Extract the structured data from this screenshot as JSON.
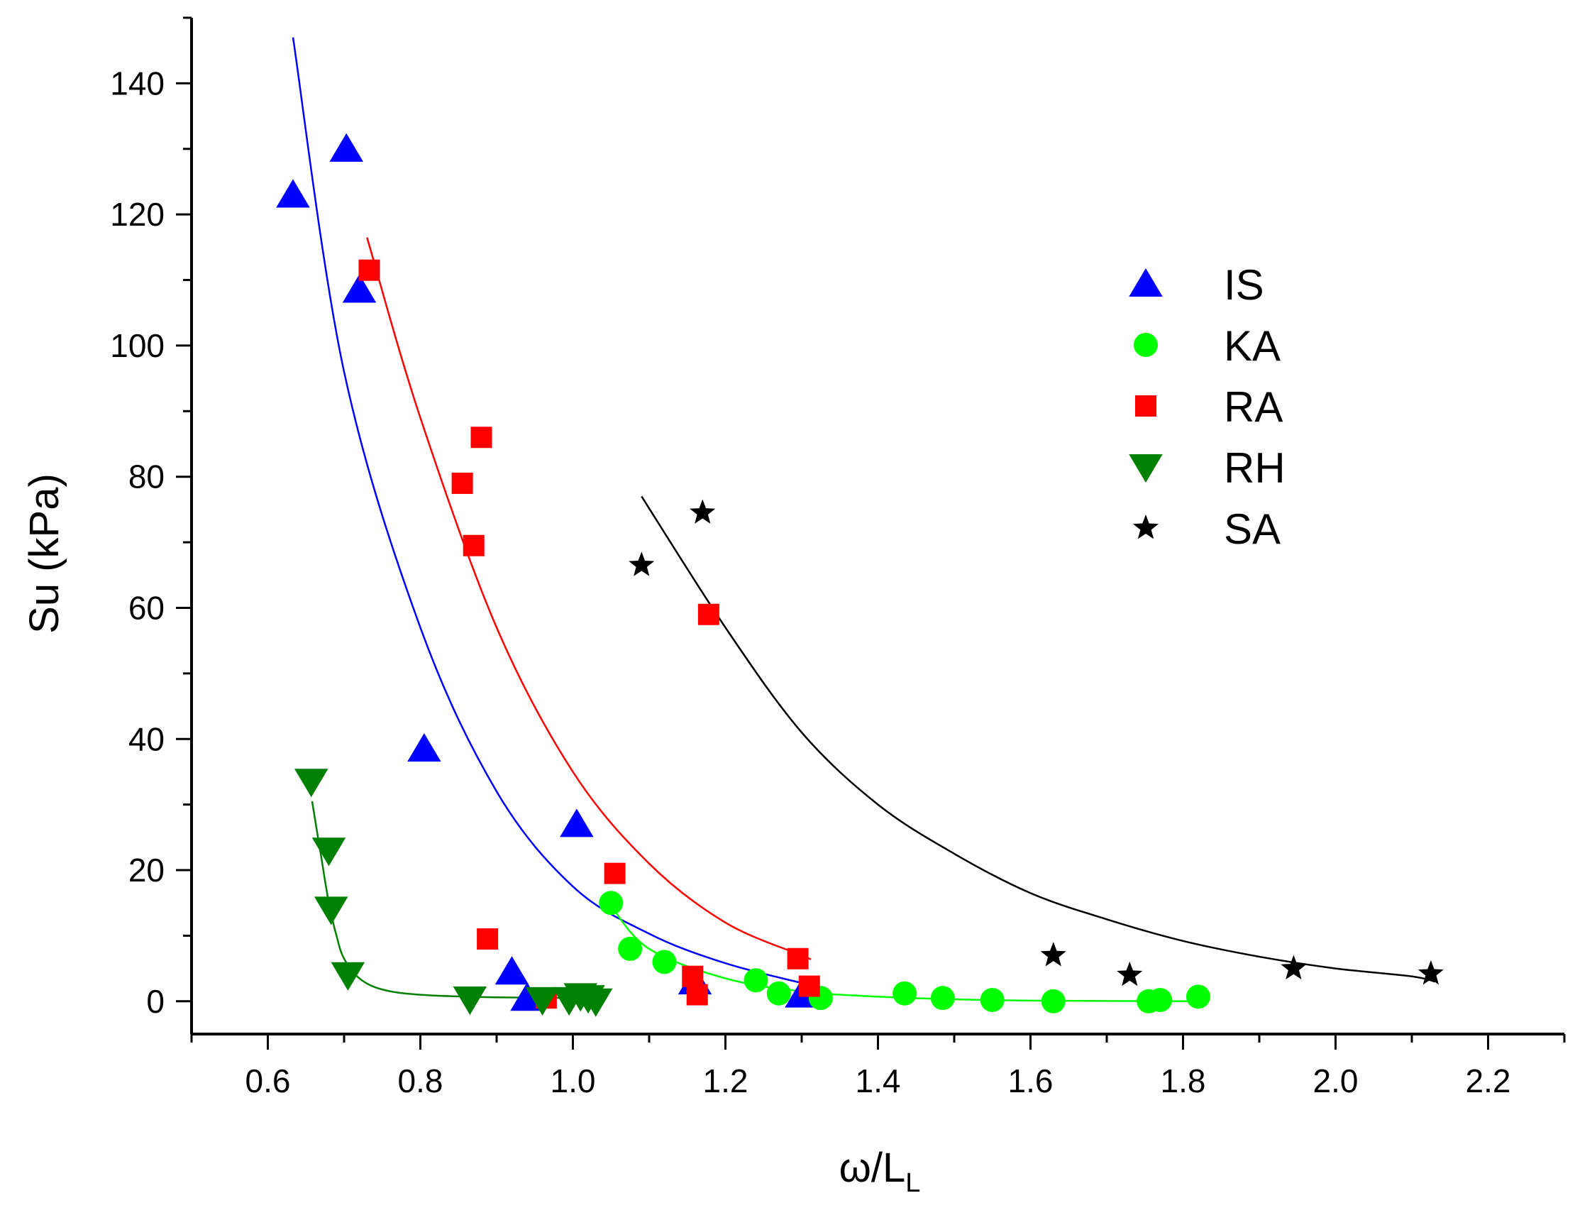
{
  "chart_data": {
    "type": "scatter",
    "title": "",
    "xlabel": "ω/L",
    "xlabel_subscript": "L",
    "ylabel": "Su (kPa)",
    "xlim": [
      0.5,
      2.3
    ],
    "ylim": [
      -5,
      150
    ],
    "x_ticks": [
      0.6,
      0.8,
      1.0,
      1.2,
      1.4,
      1.6,
      1.8,
      2.0,
      2.2
    ],
    "x_tick_labels": [
      "0.6",
      "0.8",
      "1.0",
      "1.2",
      "1.4",
      "1.6",
      "1.8",
      "2.0",
      "2.2"
    ],
    "y_ticks": [
      0,
      20,
      40,
      60,
      80,
      100,
      120,
      140
    ],
    "y_tick_labels": [
      "0",
      "20",
      "40",
      "60",
      "80",
      "100",
      "120",
      "140"
    ],
    "grid": false,
    "legend_position": "top-right",
    "series": [
      {
        "name": "IS",
        "color": "#0000ff",
        "marker": "triangle-up",
        "points": [
          [
            0.633,
            123
          ],
          [
            0.703,
            130
          ],
          [
            0.72,
            108.5
          ],
          [
            0.805,
            38.5
          ],
          [
            1.005,
            27
          ],
          [
            0.92,
            4.5
          ],
          [
            0.94,
            0.5
          ],
          [
            1.16,
            3
          ],
          [
            1.3,
            1
          ]
        ],
        "fit": [
          [
            0.633,
            147
          ],
          [
            0.7,
            96
          ],
          [
            0.8,
            57
          ],
          [
            0.9,
            32
          ],
          [
            1.0,
            17.5
          ],
          [
            1.1,
            10.3
          ],
          [
            1.2,
            5.8
          ],
          [
            1.31,
            2.5
          ]
        ]
      },
      {
        "name": "KA",
        "color": "#00ff00",
        "marker": "circle",
        "points": [
          [
            1.05,
            15
          ],
          [
            1.075,
            8
          ],
          [
            1.12,
            6
          ],
          [
            1.24,
            3.2
          ],
          [
            1.27,
            1.2
          ],
          [
            1.325,
            0.5
          ],
          [
            1.435,
            1.2
          ],
          [
            1.485,
            0.5
          ],
          [
            1.55,
            0.2
          ],
          [
            1.63,
            0
          ],
          [
            1.755,
            0
          ],
          [
            1.77,
            0.2
          ],
          [
            1.82,
            0.7
          ]
        ],
        "fit": [
          [
            1.05,
            14.5
          ],
          [
            1.1,
            8
          ],
          [
            1.2,
            3.5
          ],
          [
            1.3,
            1.5
          ],
          [
            1.4,
            0.7
          ],
          [
            1.5,
            0.3
          ],
          [
            1.6,
            0.1
          ],
          [
            1.82,
            0
          ]
        ]
      },
      {
        "name": "RA",
        "color": "#ff0000",
        "marker": "square",
        "points": [
          [
            0.733,
            111.5
          ],
          [
            0.855,
            79
          ],
          [
            0.87,
            69.5
          ],
          [
            0.88,
            86
          ],
          [
            0.888,
            9.5
          ],
          [
            0.965,
            0.5
          ],
          [
            1.055,
            19.5
          ],
          [
            1.157,
            3.8
          ],
          [
            1.163,
            1
          ],
          [
            1.178,
            59
          ],
          [
            1.295,
            6.5
          ],
          [
            1.31,
            2.3
          ]
        ],
        "fit": [
          [
            0.73,
            116.5
          ],
          [
            0.8,
            89
          ],
          [
            0.9,
            57
          ],
          [
            1.0,
            35
          ],
          [
            1.1,
            21
          ],
          [
            1.2,
            12
          ],
          [
            1.3,
            7
          ],
          [
            1.31,
            6.5
          ]
        ]
      },
      {
        "name": "RH",
        "color": "#008000",
        "marker": "triangle-down",
        "points": [
          [
            0.657,
            33.5
          ],
          [
            0.68,
            23
          ],
          [
            0.683,
            14
          ],
          [
            0.705,
            4
          ],
          [
            0.865,
            0.3
          ],
          [
            0.96,
            0.2
          ],
          [
            0.995,
            0.2
          ],
          [
            1.01,
            0.8
          ],
          [
            1.02,
            0.5
          ],
          [
            1.03,
            0
          ]
        ],
        "fit": [
          [
            0.658,
            30.5
          ],
          [
            0.67,
            22
          ],
          [
            0.68,
            15
          ],
          [
            0.69,
            10
          ],
          [
            0.7,
            6.5
          ],
          [
            0.72,
            3.5
          ],
          [
            0.75,
            1.8
          ],
          [
            0.8,
            1
          ],
          [
            0.9,
            0.6
          ],
          [
            1.03,
            0.5
          ]
        ]
      },
      {
        "name": "SA",
        "color": "#000000",
        "marker": "star",
        "points": [
          [
            1.09,
            66.5
          ],
          [
            1.17,
            74.5
          ],
          [
            1.63,
            7
          ],
          [
            1.73,
            4
          ],
          [
            1.945,
            5
          ],
          [
            2.125,
            4.2
          ]
        ],
        "fit": [
          [
            1.09,
            77
          ],
          [
            1.2,
            57
          ],
          [
            1.3,
            41
          ],
          [
            1.4,
            30
          ],
          [
            1.5,
            22.5
          ],
          [
            1.6,
            16.5
          ],
          [
            1.7,
            12.5
          ],
          [
            1.8,
            9.2
          ],
          [
            1.9,
            6.8
          ],
          [
            2.0,
            5
          ],
          [
            2.1,
            3.8
          ],
          [
            2.13,
            3
          ]
        ]
      }
    ]
  }
}
